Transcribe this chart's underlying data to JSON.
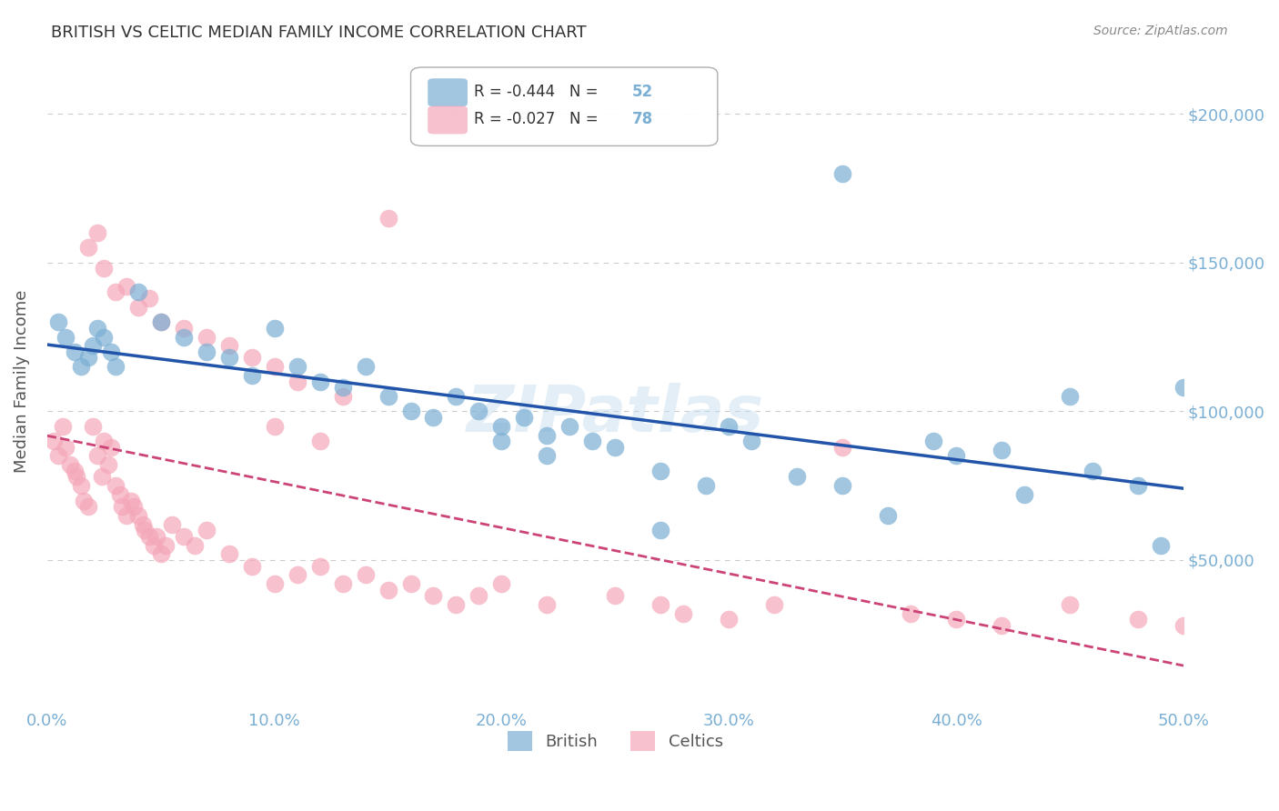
{
  "title": "BRITISH VS CELTIC MEDIAN FAMILY INCOME CORRELATION CHART",
  "source": "Source: ZipAtlas.com",
  "ylabel": "Median Family Income",
  "xlabel_ticks": [
    "0.0%",
    "10.0%",
    "20.0%",
    "30.0%",
    "40.0%",
    "50.0%"
  ],
  "xlabel_vals": [
    0.0,
    0.1,
    0.2,
    0.3,
    0.4,
    0.5
  ],
  "ytick_labels": [
    "$50,000",
    "$100,000",
    "$150,000",
    "$200,000"
  ],
  "ytick_vals": [
    50000,
    100000,
    150000,
    200000
  ],
  "xlim": [
    0.0,
    0.5
  ],
  "ylim": [
    0,
    220000
  ],
  "watermark": "ZIPatlas",
  "british_R": -0.444,
  "british_N": 52,
  "celtic_R": -0.027,
  "celtic_N": 78,
  "british_color": "#7bafd4",
  "celtic_color": "#f4a7b9",
  "british_line_color": "#2255aa",
  "celtic_line_color": "#cc4477",
  "bg_color": "#ffffff",
  "grid_color": "#cccccc",
  "axis_label_color": "#7bafd4",
  "british_x": [
    0.005,
    0.008,
    0.012,
    0.015,
    0.018,
    0.02,
    0.022,
    0.025,
    0.028,
    0.03,
    0.04,
    0.05,
    0.06,
    0.07,
    0.08,
    0.09,
    0.1,
    0.11,
    0.12,
    0.13,
    0.14,
    0.15,
    0.16,
    0.17,
    0.18,
    0.19,
    0.2,
    0.21,
    0.22,
    0.23,
    0.24,
    0.25,
    0.27,
    0.29,
    0.3,
    0.31,
    0.33,
    0.35,
    0.37,
    0.39,
    0.4,
    0.42,
    0.43,
    0.45,
    0.46,
    0.48,
    0.49,
    0.5,
    0.35,
    0.27,
    0.2,
    0.22
  ],
  "british_y": [
    130000,
    125000,
    120000,
    115000,
    118000,
    122000,
    128000,
    125000,
    120000,
    115000,
    140000,
    130000,
    125000,
    120000,
    118000,
    112000,
    128000,
    115000,
    110000,
    108000,
    115000,
    105000,
    100000,
    98000,
    105000,
    100000,
    95000,
    98000,
    92000,
    95000,
    90000,
    88000,
    80000,
    75000,
    95000,
    90000,
    78000,
    75000,
    65000,
    90000,
    85000,
    87000,
    72000,
    105000,
    80000,
    75000,
    55000,
    108000,
    180000,
    60000,
    90000,
    85000
  ],
  "celtic_x": [
    0.003,
    0.005,
    0.007,
    0.008,
    0.01,
    0.012,
    0.013,
    0.015,
    0.016,
    0.018,
    0.02,
    0.022,
    0.024,
    0.025,
    0.027,
    0.028,
    0.03,
    0.032,
    0.033,
    0.035,
    0.037,
    0.038,
    0.04,
    0.042,
    0.043,
    0.045,
    0.047,
    0.048,
    0.05,
    0.052,
    0.055,
    0.06,
    0.065,
    0.07,
    0.08,
    0.09,
    0.1,
    0.11,
    0.12,
    0.13,
    0.14,
    0.15,
    0.16,
    0.17,
    0.18,
    0.19,
    0.2,
    0.22,
    0.25,
    0.27,
    0.28,
    0.3,
    0.32,
    0.35,
    0.38,
    0.4,
    0.42,
    0.45,
    0.48,
    0.5,
    0.018,
    0.022,
    0.025,
    0.03,
    0.035,
    0.04,
    0.045,
    0.05,
    0.06,
    0.07,
    0.08,
    0.09,
    0.1,
    0.11,
    0.13,
    0.15,
    0.1,
    0.12
  ],
  "celtic_y": [
    90000,
    85000,
    95000,
    88000,
    82000,
    80000,
    78000,
    75000,
    70000,
    68000,
    95000,
    85000,
    78000,
    90000,
    82000,
    88000,
    75000,
    72000,
    68000,
    65000,
    70000,
    68000,
    65000,
    62000,
    60000,
    58000,
    55000,
    58000,
    52000,
    55000,
    62000,
    58000,
    55000,
    60000,
    52000,
    48000,
    42000,
    45000,
    48000,
    42000,
    45000,
    40000,
    42000,
    38000,
    35000,
    38000,
    42000,
    35000,
    38000,
    35000,
    32000,
    30000,
    35000,
    88000,
    32000,
    30000,
    28000,
    35000,
    30000,
    28000,
    155000,
    160000,
    148000,
    140000,
    142000,
    135000,
    138000,
    130000,
    128000,
    125000,
    122000,
    118000,
    115000,
    110000,
    105000,
    165000,
    95000,
    90000
  ]
}
